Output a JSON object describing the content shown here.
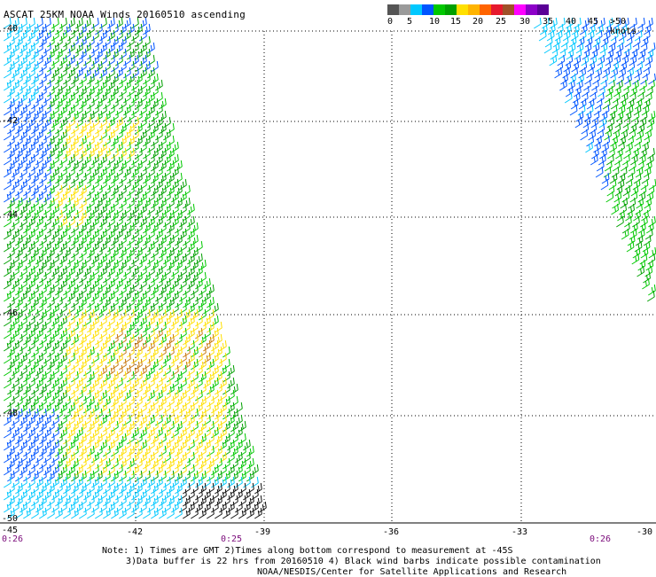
{
  "title": "ASCAT 25KM NOAA Winds 20160510 ascending",
  "legend": {
    "labels": [
      "0",
      "5",
      "10",
      "15",
      "20",
      "25",
      "30",
      "35",
      "40",
      "45",
      ">50 knots"
    ],
    "colors": [
      "#555555",
      "#9a9a9a",
      "#00c8ff",
      "#0055ff",
      "#00c800",
      "#00a000",
      "#ffe000",
      "#ffb400",
      "#ff6400",
      "#e6192d",
      "#a05028",
      "#ff00ff",
      "#8c00c8",
      "#5a0096"
    ]
  },
  "axes": {
    "lat_labels": [
      "-40",
      "-42",
      "-44",
      "-46",
      "-48",
      "-50"
    ],
    "lon_labels": [
      "-45",
      "-42",
      "-39",
      "-36",
      "-33",
      "-30"
    ],
    "time_labels": [
      "0:26",
      "0:25",
      "0:26"
    ]
  },
  "notes": {
    "line1": "Note: 1) Times are GMT 2)Times along bottom correspond to measurement at -45S",
    "line2": "3)Data buffer is 22 hrs from 20160510 4) Black wind barbs indicate possible contamination",
    "line3": "NOAA/NESDIS/Center for Satellite Applications and Research"
  }
}
